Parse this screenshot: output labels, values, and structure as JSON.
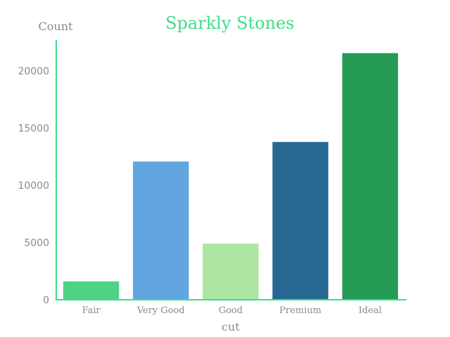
{
  "chart_data": {
    "type": "bar",
    "title": "Sparkly Stones",
    "xlabel": "cut",
    "ylabel": "Count",
    "categories": [
      "Fair",
      "Very Good",
      "Good",
      "Premium",
      "Ideal"
    ],
    "values": [
      1610,
      12082,
      4906,
      13791,
      21551
    ],
    "ylim": [
      0,
      22600
    ],
    "yticks": [
      0,
      5000,
      10000,
      15000,
      20000
    ],
    "ytick_labels": [
      "0",
      "5000",
      "10000",
      "15000",
      "20000"
    ],
    "grid": false,
    "legend": "none",
    "colors": [
      "#4fd283",
      "#62a5e0",
      "#ade5a3",
      "#276893",
      "#259b55"
    ],
    "axis_color": "#3fdd88",
    "title_color": "#3fdd88"
  }
}
